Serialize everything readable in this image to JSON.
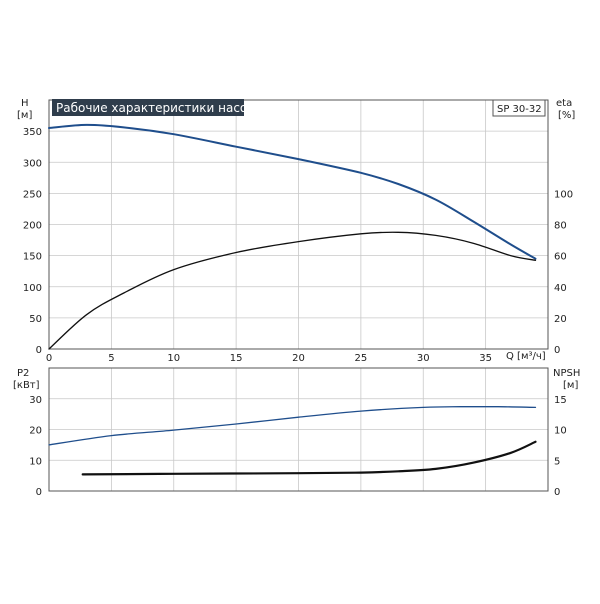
{
  "chart_data": [
    {
      "type": "line",
      "title": "Рабочие характеристики насоса",
      "model": "SP 30-32",
      "x_axis": {
        "label": "Q [м³/ч]",
        "range": [
          0,
          40
        ],
        "ticks": [
          "0",
          "5",
          "10",
          "15",
          "20",
          "25",
          "30",
          "35"
        ]
      },
      "y_left": {
        "label_top": "H",
        "label_unit": "[м]",
        "range": [
          0,
          400
        ],
        "ticks": [
          "0",
          "50",
          "100",
          "150",
          "200",
          "250",
          "300",
          "350"
        ]
      },
      "y_right": {
        "label_top": "eta",
        "label_unit": "[%]",
        "range": [
          0,
          160
        ],
        "ticks": [
          "0",
          "20",
          "40",
          "60",
          "80",
          "100"
        ]
      },
      "grid": true,
      "series": [
        {
          "axis": "left",
          "color": "#1f4e8c",
          "x": [
            0,
            3,
            6,
            10,
            15,
            20,
            25,
            28,
            31,
            34,
            37,
            39
          ],
          "y": [
            355,
            360,
            356,
            345,
            325,
            305,
            283,
            265,
            240,
            205,
            168,
            145
          ]
        },
        {
          "axis": "right",
          "color": "#111111",
          "x": [
            0,
            3,
            6,
            10,
            15,
            20,
            25,
            28,
            31,
            34,
            37,
            39
          ],
          "y": [
            0,
            22,
            36,
            51,
            62,
            69,
            74,
            75,
            73,
            68,
            60,
            57
          ]
        }
      ]
    },
    {
      "type": "line",
      "x_axis": {
        "range": [
          0,
          40
        ]
      },
      "y_left": {
        "label_top": "P2",
        "label_unit": "[кВт]",
        "range": [
          0,
          40
        ],
        "ticks": [
          "0",
          "10",
          "20",
          "30"
        ]
      },
      "y_right": {
        "label_top": "NPSH",
        "label_unit": "[м]",
        "range": [
          0,
          20
        ],
        "ticks": [
          "0",
          "5",
          "10",
          "15"
        ]
      },
      "grid": true,
      "series": [
        {
          "axis": "left",
          "color": "#1f4e8c",
          "x": [
            0,
            5,
            10,
            15,
            20,
            25,
            30,
            33,
            36,
            39
          ],
          "y": [
            15,
            18,
            19.8,
            21.8,
            24,
            26,
            27.2,
            27.4,
            27.4,
            27.2
          ]
        },
        {
          "axis": "right",
          "color": "#111111",
          "x": [
            2.7,
            10,
            20,
            25,
            28,
            31,
            34,
            37,
            39
          ],
          "y": [
            2.7,
            2.8,
            2.9,
            3.0,
            3.2,
            3.6,
            4.6,
            6.2,
            8.0
          ]
        }
      ]
    }
  ]
}
